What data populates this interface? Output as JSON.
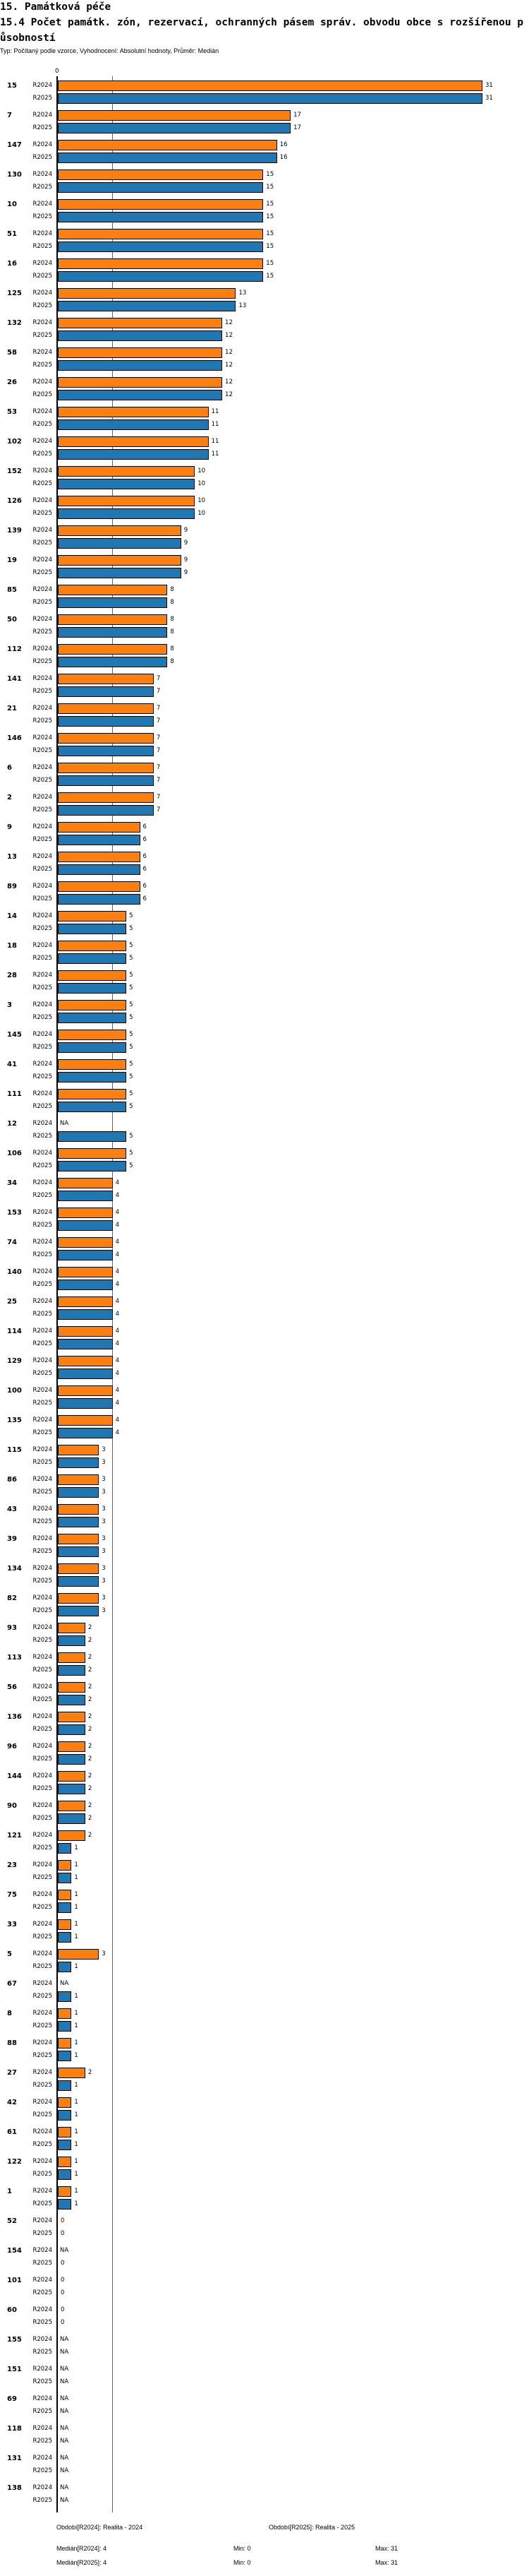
{
  "header": {
    "section_title": "15. Památková péče",
    "chart_title": "15.4 Počet památk. zón, rezervací, ochranných pásem správ. obvodu obce s rozšířenou působností",
    "subtitle": "Typ: Počítaný podle vzorce, Vyhodnocení: Absolutní hodnoty, Průměr: Medián"
  },
  "colors": {
    "R2024": "#ff7f0e",
    "R2025": "#1f77b4",
    "median_line": "#2f6fa6"
  },
  "footer": {
    "period_2024": "Období[R2024]: Realita - 2024",
    "period_2025": "Období[R2025]: Realita - 2025",
    "median_2024": "Medián[R2024]: 4",
    "median_2025": "Medián[R2025]: 4",
    "min_2024": "Min: 0",
    "min_2025": "Min: 0",
    "max_2024": "Max: 31",
    "max_2025": "Max: 31"
  },
  "chart_data": {
    "type": "bar",
    "orientation": "horizontal",
    "title": "15.4 Počet památk. zón, rezervací, ochranných pásem správ. obvodu obce s rozšířenou působností",
    "x_tick_labels": [
      "0"
    ],
    "xlim": [
      0,
      31
    ],
    "median": 4,
    "na_label": "NA",
    "series_names": [
      "R2024",
      "R2025"
    ],
    "groups": [
      {
        "id": "15",
        "values": [
          31,
          31
        ]
      },
      {
        "id": "7",
        "values": [
          17,
          17
        ]
      },
      {
        "id": "147",
        "values": [
          16,
          16
        ]
      },
      {
        "id": "130",
        "values": [
          15,
          15
        ]
      },
      {
        "id": "10",
        "values": [
          15,
          15
        ]
      },
      {
        "id": "51",
        "values": [
          15,
          15
        ]
      },
      {
        "id": "16",
        "values": [
          15,
          15
        ]
      },
      {
        "id": "125",
        "values": [
          13,
          13
        ]
      },
      {
        "id": "132",
        "values": [
          12,
          12
        ]
      },
      {
        "id": "58",
        "values": [
          12,
          12
        ]
      },
      {
        "id": "26",
        "values": [
          12,
          12
        ]
      },
      {
        "id": "53",
        "values": [
          11,
          11
        ]
      },
      {
        "id": "102",
        "values": [
          11,
          11
        ]
      },
      {
        "id": "152",
        "values": [
          10,
          10
        ]
      },
      {
        "id": "126",
        "values": [
          10,
          10
        ]
      },
      {
        "id": "139",
        "values": [
          9,
          9
        ]
      },
      {
        "id": "19",
        "values": [
          9,
          9
        ]
      },
      {
        "id": "85",
        "values": [
          8,
          8
        ]
      },
      {
        "id": "50",
        "values": [
          8,
          8
        ]
      },
      {
        "id": "112",
        "values": [
          8,
          8
        ]
      },
      {
        "id": "141",
        "values": [
          7,
          7
        ]
      },
      {
        "id": "21",
        "values": [
          7,
          7
        ]
      },
      {
        "id": "146",
        "values": [
          7,
          7
        ]
      },
      {
        "id": "6",
        "values": [
          7,
          7
        ]
      },
      {
        "id": "2",
        "values": [
          7,
          7
        ]
      },
      {
        "id": "9",
        "values": [
          6,
          6
        ]
      },
      {
        "id": "13",
        "values": [
          6,
          6
        ]
      },
      {
        "id": "89",
        "values": [
          6,
          6
        ]
      },
      {
        "id": "14",
        "values": [
          5,
          5
        ]
      },
      {
        "id": "18",
        "values": [
          5,
          5
        ]
      },
      {
        "id": "28",
        "values": [
          5,
          5
        ]
      },
      {
        "id": "3",
        "values": [
          5,
          5
        ]
      },
      {
        "id": "145",
        "values": [
          5,
          5
        ]
      },
      {
        "id": "41",
        "values": [
          5,
          5
        ]
      },
      {
        "id": "111",
        "values": [
          5,
          5
        ]
      },
      {
        "id": "12",
        "values": [
          null,
          5
        ]
      },
      {
        "id": "106",
        "values": [
          5,
          5
        ]
      },
      {
        "id": "34",
        "values": [
          4,
          4
        ]
      },
      {
        "id": "153",
        "values": [
          4,
          4
        ]
      },
      {
        "id": "74",
        "values": [
          4,
          4
        ]
      },
      {
        "id": "140",
        "values": [
          4,
          4
        ]
      },
      {
        "id": "25",
        "values": [
          4,
          4
        ]
      },
      {
        "id": "114",
        "values": [
          4,
          4
        ]
      },
      {
        "id": "129",
        "values": [
          4,
          4
        ]
      },
      {
        "id": "100",
        "values": [
          4,
          4
        ]
      },
      {
        "id": "135",
        "values": [
          4,
          4
        ]
      },
      {
        "id": "115",
        "values": [
          3,
          3
        ]
      },
      {
        "id": "86",
        "values": [
          3,
          3
        ]
      },
      {
        "id": "43",
        "values": [
          3,
          3
        ]
      },
      {
        "id": "39",
        "values": [
          3,
          3
        ]
      },
      {
        "id": "134",
        "values": [
          3,
          3
        ]
      },
      {
        "id": "82",
        "values": [
          3,
          3
        ]
      },
      {
        "id": "93",
        "values": [
          2,
          2
        ]
      },
      {
        "id": "113",
        "values": [
          2,
          2
        ]
      },
      {
        "id": "56",
        "values": [
          2,
          2
        ]
      },
      {
        "id": "136",
        "values": [
          2,
          2
        ]
      },
      {
        "id": "96",
        "values": [
          2,
          2
        ]
      },
      {
        "id": "144",
        "values": [
          2,
          2
        ]
      },
      {
        "id": "90",
        "values": [
          2,
          2
        ]
      },
      {
        "id": "121",
        "values": [
          2,
          1
        ]
      },
      {
        "id": "23",
        "values": [
          1,
          1
        ]
      },
      {
        "id": "75",
        "values": [
          1,
          1
        ]
      },
      {
        "id": "33",
        "values": [
          1,
          1
        ]
      },
      {
        "id": "5",
        "values": [
          3,
          1
        ]
      },
      {
        "id": "67",
        "values": [
          null,
          1
        ]
      },
      {
        "id": "8",
        "values": [
          1,
          1
        ]
      },
      {
        "id": "88",
        "values": [
          1,
          1
        ]
      },
      {
        "id": "27",
        "values": [
          2,
          1
        ]
      },
      {
        "id": "42",
        "values": [
          1,
          1
        ]
      },
      {
        "id": "61",
        "values": [
          1,
          1
        ]
      },
      {
        "id": "122",
        "values": [
          1,
          1
        ]
      },
      {
        "id": "1",
        "values": [
          1,
          1
        ]
      },
      {
        "id": "52",
        "values": [
          0,
          0
        ]
      },
      {
        "id": "154",
        "values": [
          null,
          0
        ]
      },
      {
        "id": "101",
        "values": [
          0,
          0
        ]
      },
      {
        "id": "60",
        "values": [
          0,
          0
        ]
      },
      {
        "id": "155",
        "values": [
          null,
          null
        ]
      },
      {
        "id": "151",
        "values": [
          null,
          null
        ]
      },
      {
        "id": "69",
        "values": [
          null,
          null
        ]
      },
      {
        "id": "118",
        "values": [
          null,
          null
        ]
      },
      {
        "id": "131",
        "values": [
          null,
          null
        ]
      },
      {
        "id": "138",
        "values": [
          null,
          null
        ]
      }
    ]
  }
}
